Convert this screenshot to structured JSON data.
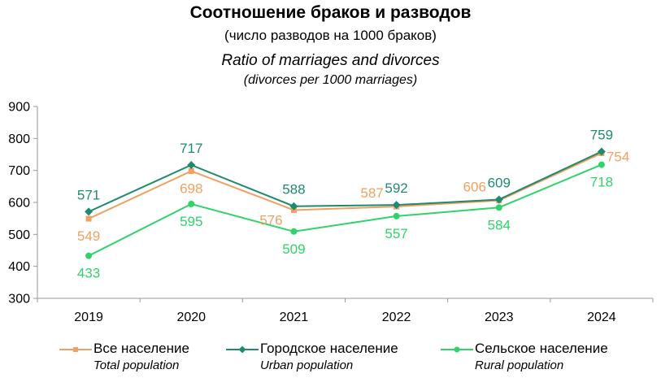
{
  "title_ru": "Соотношение браков и разводов",
  "subtitle_ru": "(число разводов на 1000 браков)",
  "title_en": "Ratio of marriages and divorces",
  "subtitle_en": "(divorces per 1000 marriages)",
  "chart_data": {
    "type": "line",
    "categories": [
      "2019",
      "2020",
      "2021",
      "2022",
      "2023",
      "2024"
    ],
    "ylim": [
      300,
      900
    ],
    "yticks": [
      300,
      400,
      500,
      600,
      700,
      800,
      900
    ],
    "grid": false,
    "legend_position": "bottom",
    "series": [
      {
        "key": "total",
        "name": "Все население",
        "name_en": "Total population",
        "color": "#F0A060",
        "marker": "square",
        "values": [
          549,
          698,
          576,
          587,
          606,
          754
        ],
        "label_side": [
          "below",
          "below",
          "left-below",
          "above-left",
          "above-left",
          "right"
        ]
      },
      {
        "key": "urban",
        "name": "Городское население",
        "name_en": "Urban population",
        "color": "#1F8A70",
        "marker": "diamond",
        "values": [
          571,
          717,
          588,
          592,
          609,
          759
        ],
        "label_side": [
          "above",
          "above",
          "above",
          "above",
          "above",
          "above"
        ]
      },
      {
        "key": "rural",
        "name": "Сельское население",
        "name_en": "Rural population",
        "color": "#2ED36A",
        "marker": "circle",
        "values": [
          433,
          595,
          509,
          557,
          584,
          718
        ],
        "label_side": [
          "below",
          "below",
          "below",
          "below",
          "below",
          "below"
        ]
      }
    ]
  }
}
